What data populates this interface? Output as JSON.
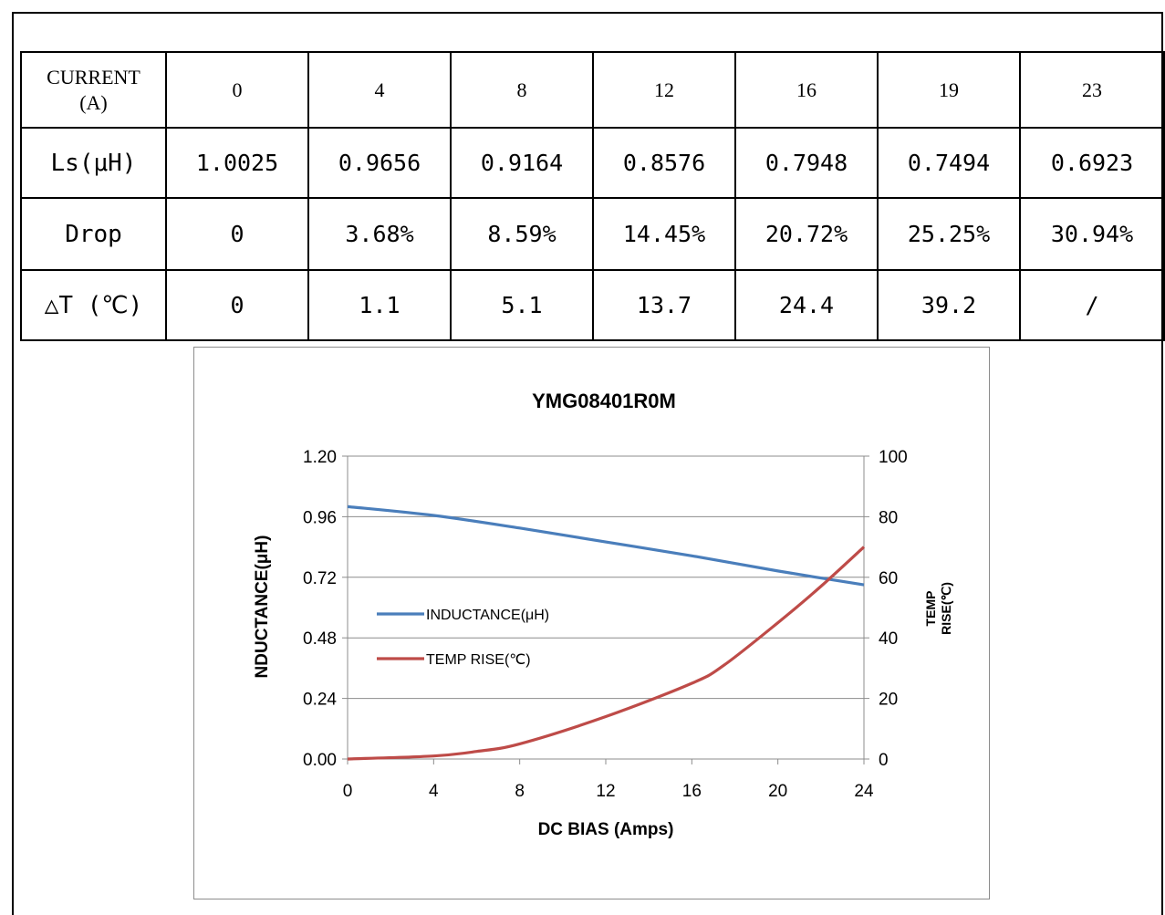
{
  "table": {
    "rows": [
      {
        "label": "CURRENT\n(A)",
        "cells": [
          "0",
          "4",
          "8",
          "12",
          "16",
          "19",
          "23"
        ]
      },
      {
        "label": "Ls(μH)",
        "cells": [
          "1.0025",
          "0.9656",
          "0.9164",
          "0.8576",
          "0.7948",
          "0.7494",
          "0.6923"
        ]
      },
      {
        "label": "Drop",
        "cells": [
          "0",
          "3.68%",
          "8.59%",
          "14.45%",
          "20.72%",
          "25.25%",
          "30.94%"
        ]
      },
      {
        "label": "△T (℃)",
        "cells": [
          "0",
          "1.1",
          "5.1",
          "13.7",
          "24.4",
          "39.2",
          "/"
        ]
      }
    ]
  },
  "chart_data": {
    "type": "line",
    "title": "YMG08401R0M",
    "xlabel": "DC BIAS (Amps)",
    "ylabel": "NDUCTANCE(μH)",
    "y2label": "TEMP RISE(℃)",
    "xlim": [
      0,
      24
    ],
    "ylim": [
      0,
      1.2
    ],
    "y2lim": [
      0,
      100
    ],
    "xticks": [
      "0",
      "4",
      "8",
      "12",
      "16",
      "20",
      "24"
    ],
    "yticks": [
      "0.00",
      "0.24",
      "0.48",
      "0.72",
      "0.96",
      "1.20"
    ],
    "y2ticks": [
      "0",
      "20",
      "40",
      "60",
      "80",
      "100"
    ],
    "grid": "horizontal",
    "legend_position": "center-left",
    "series": [
      {
        "name": "INDUCTANCE(μH)",
        "axis": "left",
        "color": "#4a7ebb",
        "x": [
          0,
          4,
          8,
          12,
          16,
          20,
          24
        ],
        "y": [
          1.0,
          0.965,
          0.915,
          0.86,
          0.805,
          0.745,
          0.69
        ]
      },
      {
        "name": "TEMP RISE(℃)",
        "axis": "right",
        "color": "#be4b48",
        "x": [
          0,
          4,
          6,
          8,
          12,
          16,
          17.5,
          20,
          22,
          24
        ],
        "y": [
          0,
          1.0,
          2.5,
          5.0,
          14.0,
          25.0,
          31.0,
          45.0,
          57.0,
          70.0
        ]
      }
    ]
  }
}
